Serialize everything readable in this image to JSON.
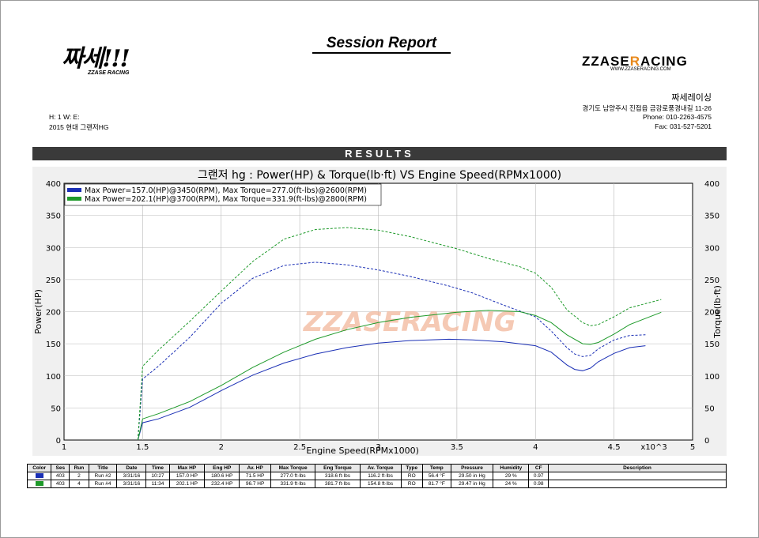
{
  "report": {
    "title": "Session Report",
    "left_logo_text": "짜세!!!",
    "left_logo_sub": "ZZASE RACING",
    "right_logo_pre": "ZZASE",
    "right_logo_r": "R",
    "right_logo_post": "ACING",
    "right_logo_url": "WWW.ZZASERACING.COM",
    "company_name": "짜세레이싱",
    "address": "경기도 남양주시 진접읍 금강로풍경내길 11-26",
    "phone": "Phone: 010-2263-4575",
    "fax": "Fax:    031-527-5201",
    "hwe": "H:  1    W:       E:",
    "vehicle": "2015 현대 그랜저HG",
    "results_label": "RESULTS",
    "watermark": "ZZASERACING"
  },
  "chart_data": {
    "type": "line",
    "title": "그랜저 hg : Power(HP) & Torque(lb·ft) VS Engine Speed(RPMx1000)",
    "xlabel": "Engine Speed(RPMx1000)",
    "x_multiplier_label": "x10^3",
    "ylabel_left": "Power(HP)",
    "ylabel_right": "Torque(lb·ft)",
    "xlim": [
      1,
      5
    ],
    "ylim": [
      0,
      400
    ],
    "x_ticks": [
      "1",
      "1.5",
      "2",
      "2.5",
      "3",
      "3.5",
      "4",
      "4.5",
      "5"
    ],
    "y_ticks": [
      "0",
      "50",
      "100",
      "150",
      "200",
      "250",
      "300",
      "350",
      "400"
    ],
    "legend": [
      {
        "color": "#1a2fb5",
        "text": "Max Power=157.0(HP)@3450(RPM), Max Torque=277.0(ft-lbs)@2600(RPM)"
      },
      {
        "color": "#1e9a2a",
        "text": "Max Power=202.1(HP)@3700(RPM), Max Torque=331.9(ft-lbs)@2800(RPM)"
      }
    ],
    "series": [
      {
        "run": "Run #2",
        "kind": "power",
        "color": "#1a2fb5",
        "dashed": false,
        "x": [
          1.47,
          1.5,
          1.6,
          1.8,
          2.0,
          2.2,
          2.4,
          2.6,
          2.8,
          3.0,
          3.2,
          3.45,
          3.6,
          3.8,
          4.0,
          4.1,
          4.2,
          4.25,
          4.3,
          4.35,
          4.4,
          4.5,
          4.6,
          4.7
        ],
        "y": [
          0,
          27,
          33,
          51,
          77,
          101,
          120,
          134,
          144,
          151,
          155,
          157,
          156,
          153,
          147,
          137,
          117,
          110,
          108,
          112,
          122,
          135,
          144,
          147
        ]
      },
      {
        "run": "Run #2",
        "kind": "torque",
        "color": "#1a2fb5",
        "dashed": true,
        "x": [
          1.47,
          1.5,
          1.6,
          1.8,
          2.0,
          2.2,
          2.4,
          2.6,
          2.8,
          3.0,
          3.2,
          3.45,
          3.6,
          3.8,
          4.0,
          4.1,
          4.2,
          4.25,
          4.3,
          4.35,
          4.4,
          4.5,
          4.6,
          4.7
        ],
        "y": [
          0,
          95,
          115,
          160,
          213,
          252,
          272,
          277,
          273,
          265,
          255,
          240,
          229,
          210,
          192,
          170,
          144,
          134,
          130,
          132,
          142,
          156,
          163,
          164
        ]
      },
      {
        "run": "Run #4",
        "kind": "power",
        "color": "#1e9a2a",
        "dashed": false,
        "x": [
          1.47,
          1.5,
          1.6,
          1.8,
          2.0,
          2.2,
          2.4,
          2.6,
          2.8,
          3.0,
          3.2,
          3.5,
          3.7,
          3.9,
          4.0,
          4.1,
          4.2,
          4.3,
          4.35,
          4.4,
          4.5,
          4.6,
          4.8
        ],
        "y": [
          0,
          33,
          41,
          60,
          85,
          113,
          137,
          157,
          172,
          183,
          191,
          199,
          202,
          200,
          194,
          183,
          164,
          150,
          149,
          152,
          165,
          180,
          199
        ]
      },
      {
        "run": "Run #4",
        "kind": "torque",
        "color": "#1e9a2a",
        "dashed": true,
        "x": [
          1.47,
          1.5,
          1.6,
          1.8,
          2.0,
          2.2,
          2.4,
          2.6,
          2.8,
          3.0,
          3.2,
          3.5,
          3.7,
          3.9,
          4.0,
          4.1,
          4.2,
          4.3,
          4.35,
          4.4,
          4.5,
          4.6,
          4.8
        ],
        "y": [
          0,
          115,
          140,
          185,
          232,
          278,
          313,
          328,
          331,
          327,
          317,
          298,
          283,
          270,
          260,
          238,
          203,
          183,
          178,
          180,
          192,
          206,
          219
        ]
      }
    ]
  },
  "table": {
    "headers": [
      "Color",
      "Ses",
      "Run",
      "Title",
      "Date",
      "Time",
      "Max HP",
      "Eng HP",
      "Av. HP",
      "Max Torque",
      "Eng Torque",
      "Av. Torque",
      "Type",
      "Temp",
      "Pressure",
      "Humidity",
      "CF",
      "Description"
    ],
    "rows": [
      {
        "color": "#1a2fb5",
        "cells": [
          "403",
          "2",
          "Run #2",
          "3/31/16",
          "10:27",
          "157.0 HP",
          "180.6 HP",
          "71.5 HP",
          "277.0 ft·lbs",
          "318.6 ft·lbs",
          "116.2 ft·lbs",
          "RO",
          "56.4 °F",
          "29.50 in·Hg",
          "29 %",
          "0.97",
          ""
        ]
      },
      {
        "color": "#1e9a2a",
        "cells": [
          "403",
          "4",
          "Run #4",
          "3/31/16",
          "11:34",
          "202.1 HP",
          "232.4 HP",
          "96.7 HP",
          "331.9 ft·lbs",
          "381.7 ft·lbs",
          "154.8 ft·lbs",
          "RO",
          "81.7 °F",
          "29.47 in·Hg",
          "24 %",
          "0.98",
          ""
        ]
      }
    ]
  }
}
